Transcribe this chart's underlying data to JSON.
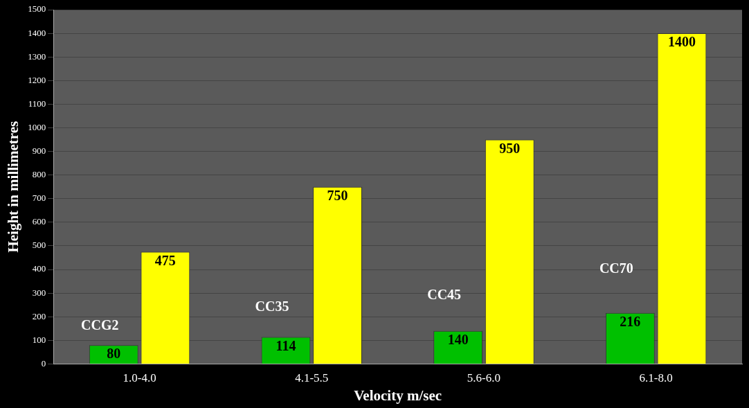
{
  "chart_data": {
    "type": "bar",
    "xlabel": "Velocity m/sec",
    "ylabel": "Height in millimetres",
    "categories": [
      "1.0-4.0",
      "4.1-5.5",
      "5.6-6.0",
      "6.1-8.0"
    ],
    "series": [
      {
        "color": "#00c000",
        "values": [
          80,
          114,
          140,
          216
        ]
      },
      {
        "color": "#ffff00",
        "values": [
          475,
          750,
          950,
          1400
        ]
      }
    ],
    "ylim": [
      0,
      1500
    ],
    "yticks": [
      0,
      100,
      200,
      300,
      400,
      500,
      600,
      700,
      800,
      900,
      1000,
      1100,
      1200,
      1300,
      1400,
      1500
    ],
    "grid": "y",
    "legend": false,
    "data_labels": true,
    "annotations": [
      {
        "text": "CCG2",
        "x": "1.0-4.0",
        "y": 130
      },
      {
        "text": "CC35",
        "x": "4.1-5.5",
        "y": 210
      },
      {
        "text": "CC45",
        "x": "5.6-6.0",
        "y": 260
      },
      {
        "text": "CC70",
        "x": "6.1-8.0",
        "y": 370
      }
    ]
  }
}
